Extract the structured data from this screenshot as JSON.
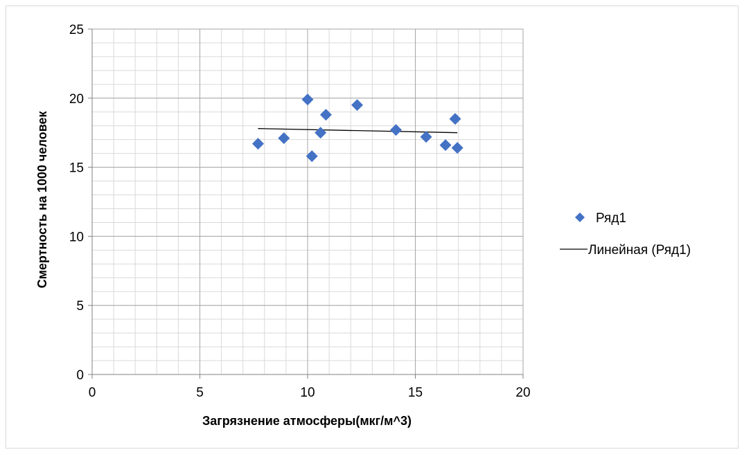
{
  "chart_data": {
    "type": "scatter",
    "xlabel": "Загрязнение атмосферы(мкг/м^3)",
    "ylabel": "Смертность на 1000 человек",
    "xlim": [
      0,
      20
    ],
    "ylim": [
      0,
      25
    ],
    "x_ticks": [
      "0",
      "5",
      "10",
      "15",
      "20"
    ],
    "y_ticks": [
      "0",
      "5",
      "10",
      "15",
      "20",
      "25"
    ],
    "grid": true,
    "legend_position": "right",
    "series": [
      {
        "name": "Ряд1",
        "color": "#4472C4",
        "marker": "diamond",
        "points": [
          {
            "x": 7.7,
            "y": 16.7
          },
          {
            "x": 8.9,
            "y": 17.1
          },
          {
            "x": 10.0,
            "y": 19.9
          },
          {
            "x": 10.2,
            "y": 15.8
          },
          {
            "x": 10.6,
            "y": 17.5
          },
          {
            "x": 10.85,
            "y": 18.8
          },
          {
            "x": 12.3,
            "y": 19.5
          },
          {
            "x": 14.1,
            "y": 17.7
          },
          {
            "x": 15.5,
            "y": 17.2
          },
          {
            "x": 16.4,
            "y": 16.6
          },
          {
            "x": 16.85,
            "y": 18.5
          },
          {
            "x": 16.95,
            "y": 16.4
          }
        ]
      }
    ],
    "trendline": {
      "name": "Линейная (Ряд1)",
      "color": "#000000",
      "points": [
        {
          "x": 7.7,
          "y": 17.8
        },
        {
          "x": 16.95,
          "y": 17.5
        }
      ]
    }
  }
}
